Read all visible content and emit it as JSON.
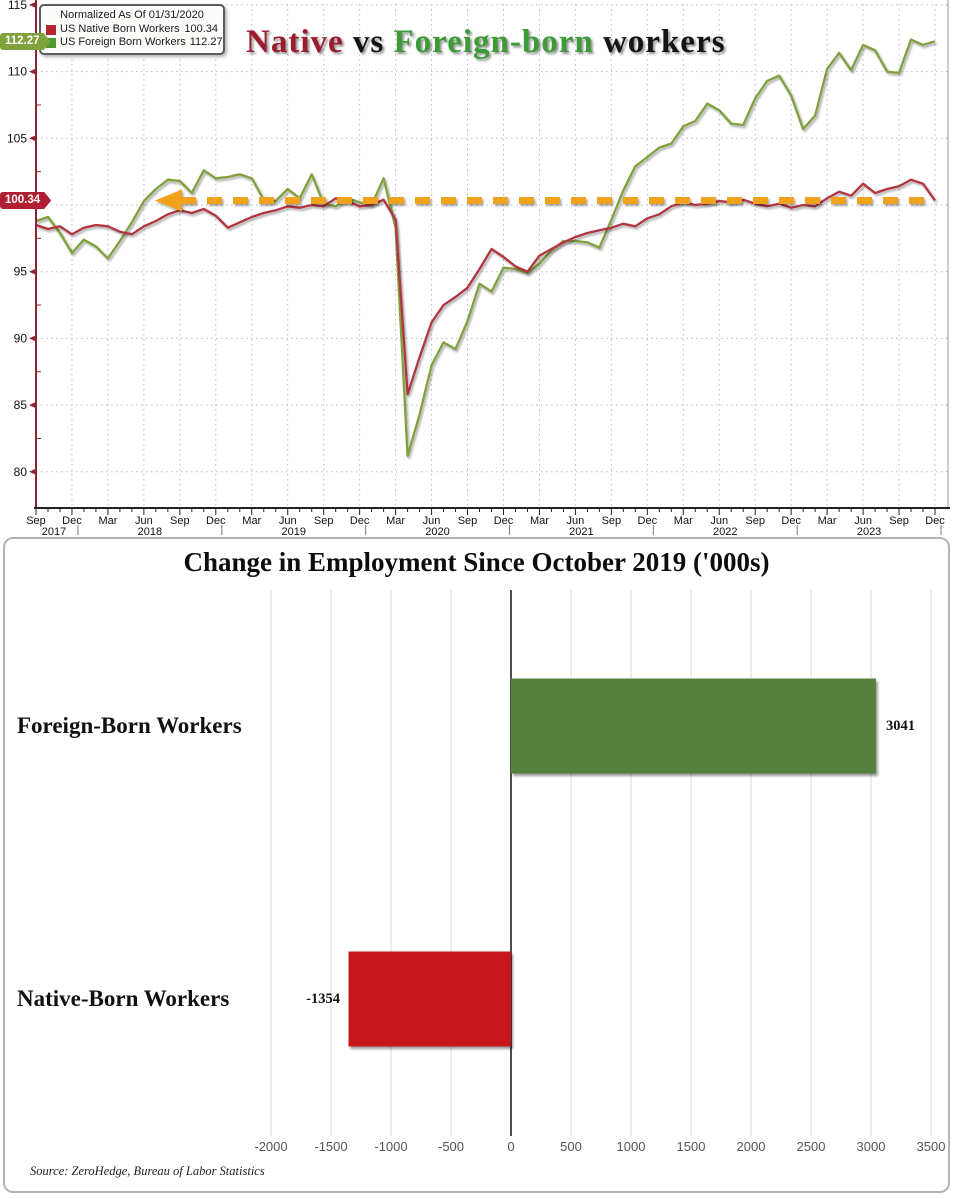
{
  "top_chart": {
    "title_parts": [
      {
        "text": "Native",
        "color": "#9a1c2e"
      },
      {
        "text": " vs ",
        "color": "#141414"
      },
      {
        "text": "Foreign-born",
        "color": "#3c9b36"
      },
      {
        "text": " workers",
        "color": "#141414"
      }
    ],
    "legend": {
      "header": "Normalized As Of 01/31/2020",
      "items": [
        {
          "label": "US Native Born Workers",
          "value": "100.34",
          "color": "#b5252e"
        },
        {
          "label": "US Foreign Born Workers",
          "value": "112.27",
          "color": "#4f9a2f"
        }
      ]
    },
    "axis_badges": [
      {
        "text": "112.27",
        "value": 112.27,
        "color": "#7fa23c"
      },
      {
        "text": "100.34",
        "value": 100.34,
        "color": "#b01e31"
      }
    ],
    "reference_line": {
      "value": 100.34,
      "color": "#f0a21d"
    },
    "colors": {
      "native_line": "#b13440",
      "foreign_line": "#7fa13c",
      "y_axis": "#8c2332",
      "x_axis": "#222222"
    }
  },
  "bottom_chart": {
    "source": "Source: ZeroHedge, Bureau of Labor Statistics"
  },
  "chart_data": [
    {
      "type": "line",
      "title": "Native vs Foreign-born workers",
      "normalization_note": "Normalized As Of 01/31/2020",
      "ylim": [
        80,
        115
      ],
      "yticks": [
        80,
        85,
        90,
        95,
        100,
        105,
        110,
        115
      ],
      "grid": true,
      "legend_position": "top-left",
      "reference_line": 100.34,
      "x": [
        "Sep 2017",
        "Oct 2017",
        "Nov 2017",
        "Dec 2017",
        "Jan 2018",
        "Feb 2018",
        "Mar 2018",
        "Apr 2018",
        "May 2018",
        "Jun 2018",
        "Jul 2018",
        "Aug 2018",
        "Sep 2018",
        "Oct 2018",
        "Nov 2018",
        "Dec 2018",
        "Jan 2019",
        "Feb 2019",
        "Mar 2019",
        "Apr 2019",
        "May 2019",
        "Jun 2019",
        "Jul 2019",
        "Aug 2019",
        "Sep 2019",
        "Oct 2019",
        "Nov 2019",
        "Dec 2019",
        "Jan 2020",
        "Feb 2020",
        "Mar 2020",
        "Apr 2020",
        "May 2020",
        "Jun 2020",
        "Jul 2020",
        "Aug 2020",
        "Sep 2020",
        "Oct 2020",
        "Nov 2020",
        "Dec 2020",
        "Jan 2021",
        "Feb 2021",
        "Mar 2021",
        "Apr 2021",
        "May 2021",
        "Jun 2021",
        "Jul 2021",
        "Aug 2021",
        "Sep 2021",
        "Oct 2021",
        "Nov 2021",
        "Dec 2021",
        "Jan 2022",
        "Feb 2022",
        "Mar 2022",
        "Apr 2022",
        "May 2022",
        "Jun 2022",
        "Jul 2022",
        "Aug 2022",
        "Sep 2022",
        "Oct 2022",
        "Nov 2022",
        "Dec 2022",
        "Jan 2023",
        "Feb 2023",
        "Mar 2023",
        "Apr 2023",
        "May 2023",
        "Jun 2023",
        "Jul 2023",
        "Aug 2023",
        "Sep 2023",
        "Oct 2023",
        "Nov 2023",
        "Dec 2023"
      ],
      "series": [
        {
          "name": "US Native Born Workers",
          "color": "#b13440",
          "last_value": 100.34,
          "values": [
            98.5,
            98.2,
            98.4,
            97.8,
            98.3,
            98.5,
            98.4,
            98.0,
            97.8,
            98.4,
            98.8,
            99.3,
            99.6,
            99.4,
            99.7,
            99.2,
            98.3,
            98.7,
            99.1,
            99.4,
            99.6,
            99.9,
            99.8,
            100.0,
            99.9,
            100.5,
            100.3,
            99.9,
            100.0,
            100.4,
            98.9,
            85.8,
            88.6,
            91.2,
            92.5,
            93.1,
            93.8,
            95.2,
            96.7,
            96.1,
            95.4,
            95.0,
            96.2,
            96.7,
            97.2,
            97.6,
            97.9,
            98.1,
            98.3,
            98.6,
            98.4,
            99.0,
            99.3,
            99.9,
            100.2,
            100.0,
            100.1,
            100.3,
            100.2,
            100.4,
            100.1,
            99.9,
            100.1,
            99.8,
            100.0,
            99.9,
            100.5,
            101.0,
            100.7,
            101.6,
            100.9,
            101.2,
            101.4,
            101.9,
            101.6,
            100.34
          ]
        },
        {
          "name": "US Foreign Born Workers",
          "color": "#7fa13c",
          "last_value": 112.27,
          "values": [
            98.8,
            99.1,
            97.9,
            96.4,
            97.4,
            96.9,
            96.0,
            97.3,
            98.7,
            100.3,
            101.2,
            101.9,
            101.8,
            100.9,
            102.6,
            102.0,
            102.1,
            102.3,
            102.0,
            100.4,
            100.3,
            101.2,
            100.5,
            102.3,
            100.1,
            99.9,
            100.5,
            100.2,
            100.0,
            102.0,
            98.3,
            81.2,
            84.3,
            88.0,
            89.7,
            89.2,
            91.3,
            94.1,
            93.5,
            95.3,
            95.2,
            94.9,
            95.6,
            96.6,
            97.3,
            97.3,
            97.2,
            96.8,
            98.9,
            101.1,
            102.9,
            103.6,
            104.3,
            104.6,
            105.9,
            106.3,
            107.6,
            107.1,
            106.1,
            106.0,
            108.0,
            109.3,
            109.7,
            108.2,
            105.7,
            106.7,
            110.2,
            111.4,
            110.1,
            112.0,
            111.6,
            110.0,
            109.9,
            112.4,
            112.0,
            112.27
          ]
        }
      ]
    },
    {
      "type": "bar",
      "orientation": "horizontal",
      "title": "Change in Employment Since October 2019 ('000s)",
      "categories": [
        "Foreign-Born Workers",
        "Native-Born Workers"
      ],
      "values": [
        3041,
        -1354
      ],
      "colors": [
        "#567f3b",
        "#c6131b"
      ],
      "xlim": [
        -2000,
        3500
      ],
      "xticks": [
        -2000,
        -1500,
        -1000,
        -500,
        0,
        500,
        1000,
        1500,
        2000,
        2500,
        3000,
        3500
      ],
      "grid": true
    }
  ]
}
